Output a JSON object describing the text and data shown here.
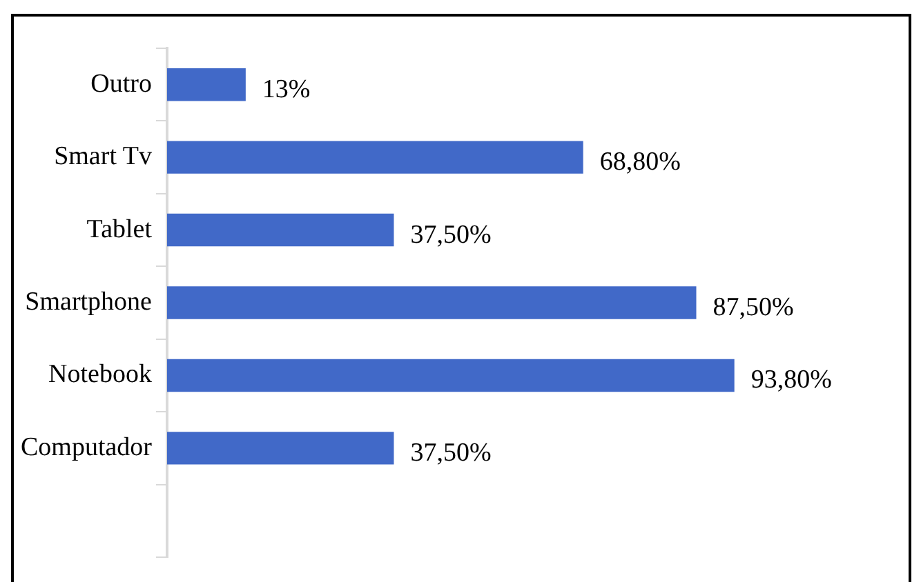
{
  "chart_data": {
    "type": "bar",
    "orientation": "horizontal",
    "categories": [
      "Outro",
      "Smart Tv",
      "Tablet",
      "Smartphone",
      "Notebook",
      "Computador",
      null
    ],
    "values": [
      13,
      68.8,
      37.5,
      87.5,
      93.8,
      37.5,
      null
    ],
    "value_labels": [
      "13%",
      "68,80%",
      "37,50%",
      "87,50%",
      "93,80%",
      "37,50%",
      null
    ],
    "color": "#4169c8"
  }
}
